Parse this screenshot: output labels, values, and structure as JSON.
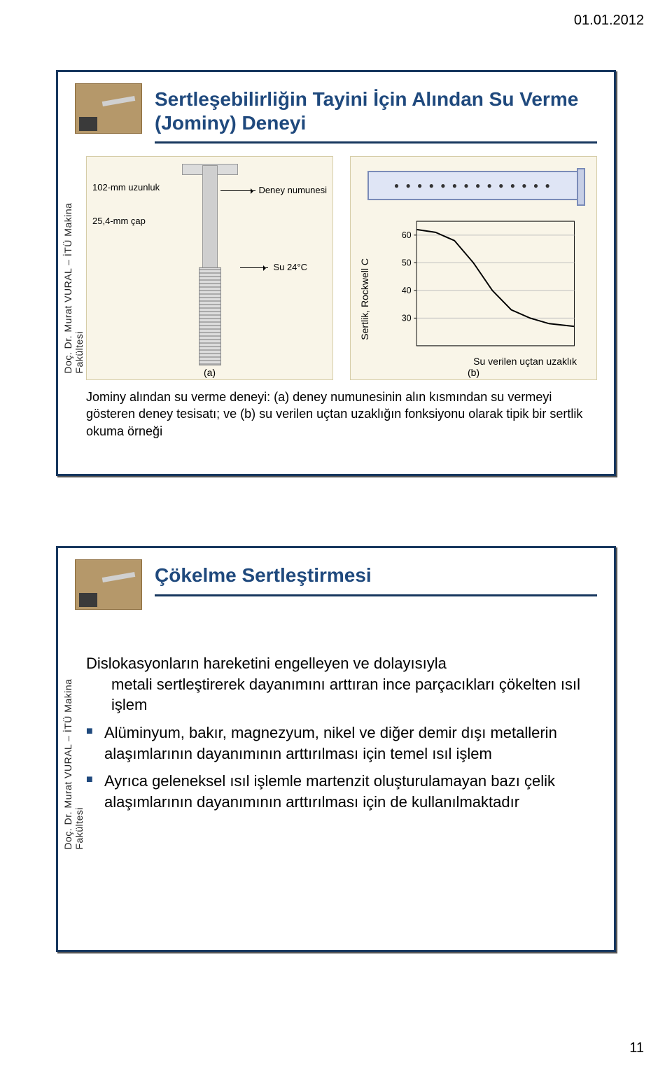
{
  "page": {
    "date": "01.01.2012",
    "number": "11"
  },
  "author_strip": "Doç. Dr. Murat VURAL – İTÜ Makina Fakültesi",
  "slide1": {
    "title": "Sertleşebilirliğin Tayini İçin Alından Su Verme (Jominy) Deneyi",
    "figA": {
      "length_label": "102-mm uzunluk",
      "diameter_label": "25,4-mm çap",
      "specimen_label": "Deney numunesi",
      "water_label": "Su 24°C",
      "sub": "(a)"
    },
    "figB": {
      "sub": "(b)",
      "chart": {
        "type": "line",
        "ylabel": "Sertlik, Rockwell C",
        "xlabel": "Su verilen uçtan uzaklık",
        "ylim": [
          20,
          65
        ],
        "yticks": [
          30,
          40,
          50,
          60
        ],
        "x_range": [
          0,
          100
        ],
        "line_points": [
          [
            0,
            62
          ],
          [
            12,
            61
          ],
          [
            24,
            58
          ],
          [
            36,
            50
          ],
          [
            48,
            40
          ],
          [
            60,
            33
          ],
          [
            72,
            30
          ],
          [
            84,
            28
          ],
          [
            100,
            27
          ]
        ],
        "line_color": "#000000",
        "line_width": 2,
        "grid_color": "#bfbfbf",
        "background_color": "#f9f5e8",
        "tick_fontsize": 13,
        "label_fontsize": 14
      }
    },
    "caption": "Jominy alından su verme deneyi: (a) deney numunesinin alın kısmından su vermeyi gösteren deney tesisatı; ve (b) su verilen uçtan uzaklığın fonksiyonu olarak tipik bir sertlik okuma örneği"
  },
  "slide2": {
    "title": "Çökelme Sertleştirmesi",
    "intro": "Dislokasyonların hareketini engelleyen ve dolayısıyla metali sertleştirerek dayanımını arttıran ince parçacıkları çökelten ısıl işlem",
    "bullets": [
      "Alüminyum, bakır, magnezyum, nikel ve diğer demir dışı metallerin alaşımlarının dayanımının arttırılması için temel ısıl işlem",
      "Ayrıca geleneksel ısıl işlemle martenzit oluşturulamayan bazı çelik alaşımlarının dayanımının arttırılması için de kullanılmaktadır"
    ]
  }
}
